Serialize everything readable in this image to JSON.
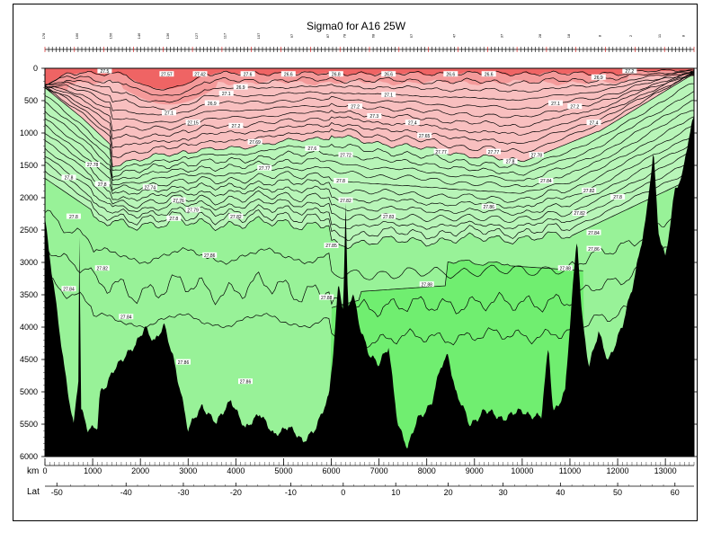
{
  "chart_data": {
    "type": "heatmap",
    "title": "Sigma0 for A16 25W",
    "xlabel": "km",
    "x2label": "Lat",
    "xlim": [
      0,
      13600
    ],
    "ylim": [
      6000,
      0
    ],
    "x_ticks": [
      0,
      1000,
      2000,
      3000,
      4000,
      5000,
      6000,
      7000,
      8000,
      9000,
      10000,
      11000,
      12000,
      13000
    ],
    "y_ticks": [
      0,
      500,
      1000,
      1500,
      2000,
      2500,
      3000,
      3500,
      4000,
      4500,
      5000,
      5500,
      6000
    ],
    "lat_ticks": [
      {
        "km": 250,
        "label": "-50"
      },
      {
        "km": 1700,
        "label": "-40"
      },
      {
        "km": 2900,
        "label": "-30"
      },
      {
        "km": 4000,
        "label": "-20"
      },
      {
        "km": 5150,
        "label": "-10"
      },
      {
        "km": 6250,
        "label": "0"
      },
      {
        "km": 7350,
        "label": "10"
      },
      {
        "km": 8450,
        "label": "20"
      },
      {
        "km": 9600,
        "label": "30"
      },
      {
        "km": 10800,
        "label": "40"
      },
      {
        "km": 12000,
        "label": "50"
      },
      {
        "km": 13200,
        "label": "60"
      }
    ],
    "station_labels": [
      {
        "km": 0,
        "label": "178"
      },
      {
        "km": 700,
        "label": "166"
      },
      {
        "km": 1400,
        "label": "156"
      },
      {
        "km": 2000,
        "label": "146"
      },
      {
        "km": 2600,
        "label": "136"
      },
      {
        "km": 3200,
        "label": "127"
      },
      {
        "km": 3800,
        "label": "117"
      },
      {
        "km": 4500,
        "label": "107"
      },
      {
        "km": 5200,
        "label": "97"
      },
      {
        "km": 5950,
        "label": "87"
      },
      {
        "km": 6300,
        "label": "78"
      },
      {
        "km": 6900,
        "label": "68"
      },
      {
        "km": 7700,
        "label": "57"
      },
      {
        "km": 8600,
        "label": "47"
      },
      {
        "km": 9600,
        "label": "37"
      },
      {
        "km": 10400,
        "label": "28"
      },
      {
        "km": 11000,
        "label": "18"
      },
      {
        "km": 11650,
        "label": "8"
      },
      {
        "km": 12300,
        "label": "2"
      },
      {
        "km": 12900,
        "label": "11"
      },
      {
        "km": 13400,
        "label": "8"
      }
    ],
    "bands": [
      {
        "level": "upper-dark",
        "color": "#ef6464"
      },
      {
        "level": "upper-mid",
        "color": "#f49a9a"
      },
      {
        "level": "upper",
        "color": "#f8bfbf"
      },
      {
        "level": "intermediate",
        "color": "#b8f5b8"
      },
      {
        "level": "deep",
        "color": "#98f298"
      },
      {
        "level": "bottom",
        "color": "#70ee70"
      },
      {
        "level": "seafloor",
        "color": "#000000"
      }
    ],
    "contour_labels": [
      {
        "km": 1250,
        "depth": 50,
        "label": "27.5"
      },
      {
        "km": 2550,
        "depth": 100,
        "label": "27.57"
      },
      {
        "km": 3250,
        "depth": 100,
        "label": "27.42"
      },
      {
        "km": 4250,
        "depth": 100,
        "label": "27.6"
      },
      {
        "km": 5100,
        "depth": 100,
        "label": "26.6"
      },
      {
        "km": 6100,
        "depth": 100,
        "label": "26.8"
      },
      {
        "km": 7200,
        "depth": 100,
        "label": "26.6"
      },
      {
        "km": 8500,
        "depth": 100,
        "label": "26.6"
      },
      {
        "km": 9300,
        "depth": 100,
        "label": "26.6"
      },
      {
        "km": 11600,
        "depth": 150,
        "label": "26.9"
      },
      {
        "km": 12250,
        "depth": 50,
        "label": "27.2"
      },
      {
        "km": 4100,
        "depth": 300,
        "label": "26.9"
      },
      {
        "km": 3800,
        "depth": 400,
        "label": "27.1"
      },
      {
        "km": 3500,
        "depth": 550,
        "label": "26.9"
      },
      {
        "km": 2600,
        "depth": 700,
        "label": "27.1"
      },
      {
        "km": 3100,
        "depth": 850,
        "label": "27.15"
      },
      {
        "km": 4000,
        "depth": 900,
        "label": "27.2"
      },
      {
        "km": 6500,
        "depth": 600,
        "label": "27.2"
      },
      {
        "km": 7200,
        "depth": 420,
        "label": "27.1"
      },
      {
        "km": 6900,
        "depth": 750,
        "label": "27.3"
      },
      {
        "km": 7700,
        "depth": 850,
        "label": "27.4"
      },
      {
        "km": 10700,
        "depth": 550,
        "label": "27.1"
      },
      {
        "km": 11100,
        "depth": 600,
        "label": "27.2"
      },
      {
        "km": 11500,
        "depth": 850,
        "label": "27.4"
      },
      {
        "km": 7950,
        "depth": 1050,
        "label": "27.65"
      },
      {
        "km": 4400,
        "depth": 1150,
        "label": "27.69"
      },
      {
        "km": 5600,
        "depth": 1250,
        "label": "27.6"
      },
      {
        "km": 6300,
        "depth": 1350,
        "label": "27.72"
      },
      {
        "km": 8300,
        "depth": 1300,
        "label": "27.77"
      },
      {
        "km": 9400,
        "depth": 1300,
        "label": "27.77"
      },
      {
        "km": 9750,
        "depth": 1450,
        "label": "27.8"
      },
      {
        "km": 10300,
        "depth": 1350,
        "label": "27.78"
      },
      {
        "km": 4600,
        "depth": 1550,
        "label": "27.77"
      },
      {
        "km": 6200,
        "depth": 1750,
        "label": "27.8"
      },
      {
        "km": 2200,
        "depth": 1850,
        "label": "27.74"
      },
      {
        "km": 2800,
        "depth": 2050,
        "label": "27.76"
      },
      {
        "km": 3100,
        "depth": 2200,
        "label": "27.79"
      },
      {
        "km": 2700,
        "depth": 2330,
        "label": "27.8"
      },
      {
        "km": 4000,
        "depth": 2300,
        "label": "27.82"
      },
      {
        "km": 6300,
        "depth": 2050,
        "label": "27.82"
      },
      {
        "km": 7200,
        "depth": 2300,
        "label": "27.83"
      },
      {
        "km": 9300,
        "depth": 2150,
        "label": "27.86"
      },
      {
        "km": 10500,
        "depth": 1750,
        "label": "27.84"
      },
      {
        "km": 11200,
        "depth": 2250,
        "label": "27.82"
      },
      {
        "km": 11500,
        "depth": 2550,
        "label": "27.84"
      },
      {
        "km": 11500,
        "depth": 2800,
        "label": "27.86"
      },
      {
        "km": 3450,
        "depth": 2900,
        "label": "27.86"
      },
      {
        "km": 6000,
        "depth": 2750,
        "label": "27.85"
      },
      {
        "km": 10900,
        "depth": 3100,
        "label": "27.88"
      },
      {
        "km": 8000,
        "depth": 3350,
        "label": "27.88"
      },
      {
        "km": 5900,
        "depth": 3550,
        "label": "27.88"
      },
      {
        "km": 500,
        "depth": 3420,
        "label": "27.84"
      },
      {
        "km": 1700,
        "depth": 3850,
        "label": "27.84"
      },
      {
        "km": 2900,
        "depth": 4550,
        "label": "27.86"
      },
      {
        "km": 4200,
        "depth": 4850,
        "label": "27.86"
      },
      {
        "km": 500,
        "depth": 1700,
        "label": "27.8"
      },
      {
        "km": 600,
        "depth": 2300,
        "label": "27.8"
      },
      {
        "km": 1200,
        "depth": 3100,
        "label": "27.82"
      },
      {
        "km": 1000,
        "depth": 1500,
        "label": "27.78"
      },
      {
        "km": 1200,
        "depth": 1800,
        "label": "27.8"
      },
      {
        "km": 11400,
        "depth": 1900,
        "label": "27.82"
      },
      {
        "km": 12000,
        "depth": 2000,
        "label": "27.8"
      }
    ]
  }
}
